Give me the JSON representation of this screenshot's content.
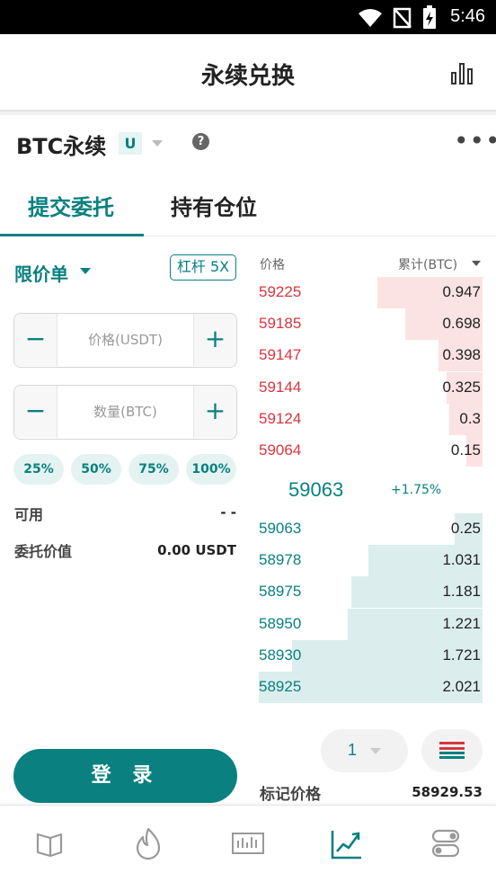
{
  "status": {
    "time": "5:46"
  },
  "header": {
    "title": "永续兑换"
  },
  "market": {
    "symbol": "BTC永续",
    "badge": "U"
  },
  "tabs": [
    {
      "label": "提交委托",
      "active": true
    },
    {
      "label": "持有仓位",
      "active": false
    }
  ],
  "form": {
    "order_type": "限价单",
    "leverage": "杠杆 5X",
    "price_placeholder": "价格(USDT)",
    "qty_placeholder": "数量(BTC)",
    "minus": "−",
    "plus": "+",
    "percents": [
      "25%",
      "50%",
      "75%",
      "100%"
    ],
    "available_label": "可用",
    "available_value": "- -",
    "order_value_label": "委托价值",
    "order_value": "0.00 USDT",
    "login": "登 录"
  },
  "orderbook": {
    "price_header": "价格",
    "amount_header": "累计(BTC)",
    "asks": [
      {
        "price": "59225",
        "amount": "0.947",
        "depth": 0.947
      },
      {
        "price": "59185",
        "amount": "0.698",
        "depth": 0.698
      },
      {
        "price": "59147",
        "amount": "0.398",
        "depth": 0.398
      },
      {
        "price": "59144",
        "amount": "0.325",
        "depth": 0.325
      },
      {
        "price": "59124",
        "amount": "0.3",
        "depth": 0.3
      },
      {
        "price": "59064",
        "amount": "0.15",
        "depth": 0.15
      }
    ],
    "last_price": "59063",
    "change": "+1.75%",
    "bids": [
      {
        "price": "59063",
        "amount": "0.25",
        "depth": 0.25
      },
      {
        "price": "58978",
        "amount": "1.031",
        "depth": 1.031
      },
      {
        "price": "58975",
        "amount": "1.181",
        "depth": 1.181
      },
      {
        "price": "58950",
        "amount": "1.221",
        "depth": 1.221
      },
      {
        "price": "58930",
        "amount": "1.721",
        "depth": 1.721
      },
      {
        "price": "58925",
        "amount": "2.021",
        "depth": 2.021
      }
    ],
    "max_depth": 2.021,
    "precision": "1",
    "mark_label": "标记价格",
    "mark_value": "58929.53"
  },
  "colors": {
    "accent": "#0a8080",
    "ask": "#d9363e",
    "ask_bg": "#fbe3e4",
    "bid_bg": "#dbeeed"
  },
  "nav": [
    {
      "icon": "map-icon",
      "active": false
    },
    {
      "icon": "flame-icon",
      "active": false
    },
    {
      "icon": "market-chart-icon",
      "active": false
    },
    {
      "icon": "trade-chart-icon",
      "active": true
    },
    {
      "icon": "toggle-settings-icon",
      "active": false
    }
  ]
}
